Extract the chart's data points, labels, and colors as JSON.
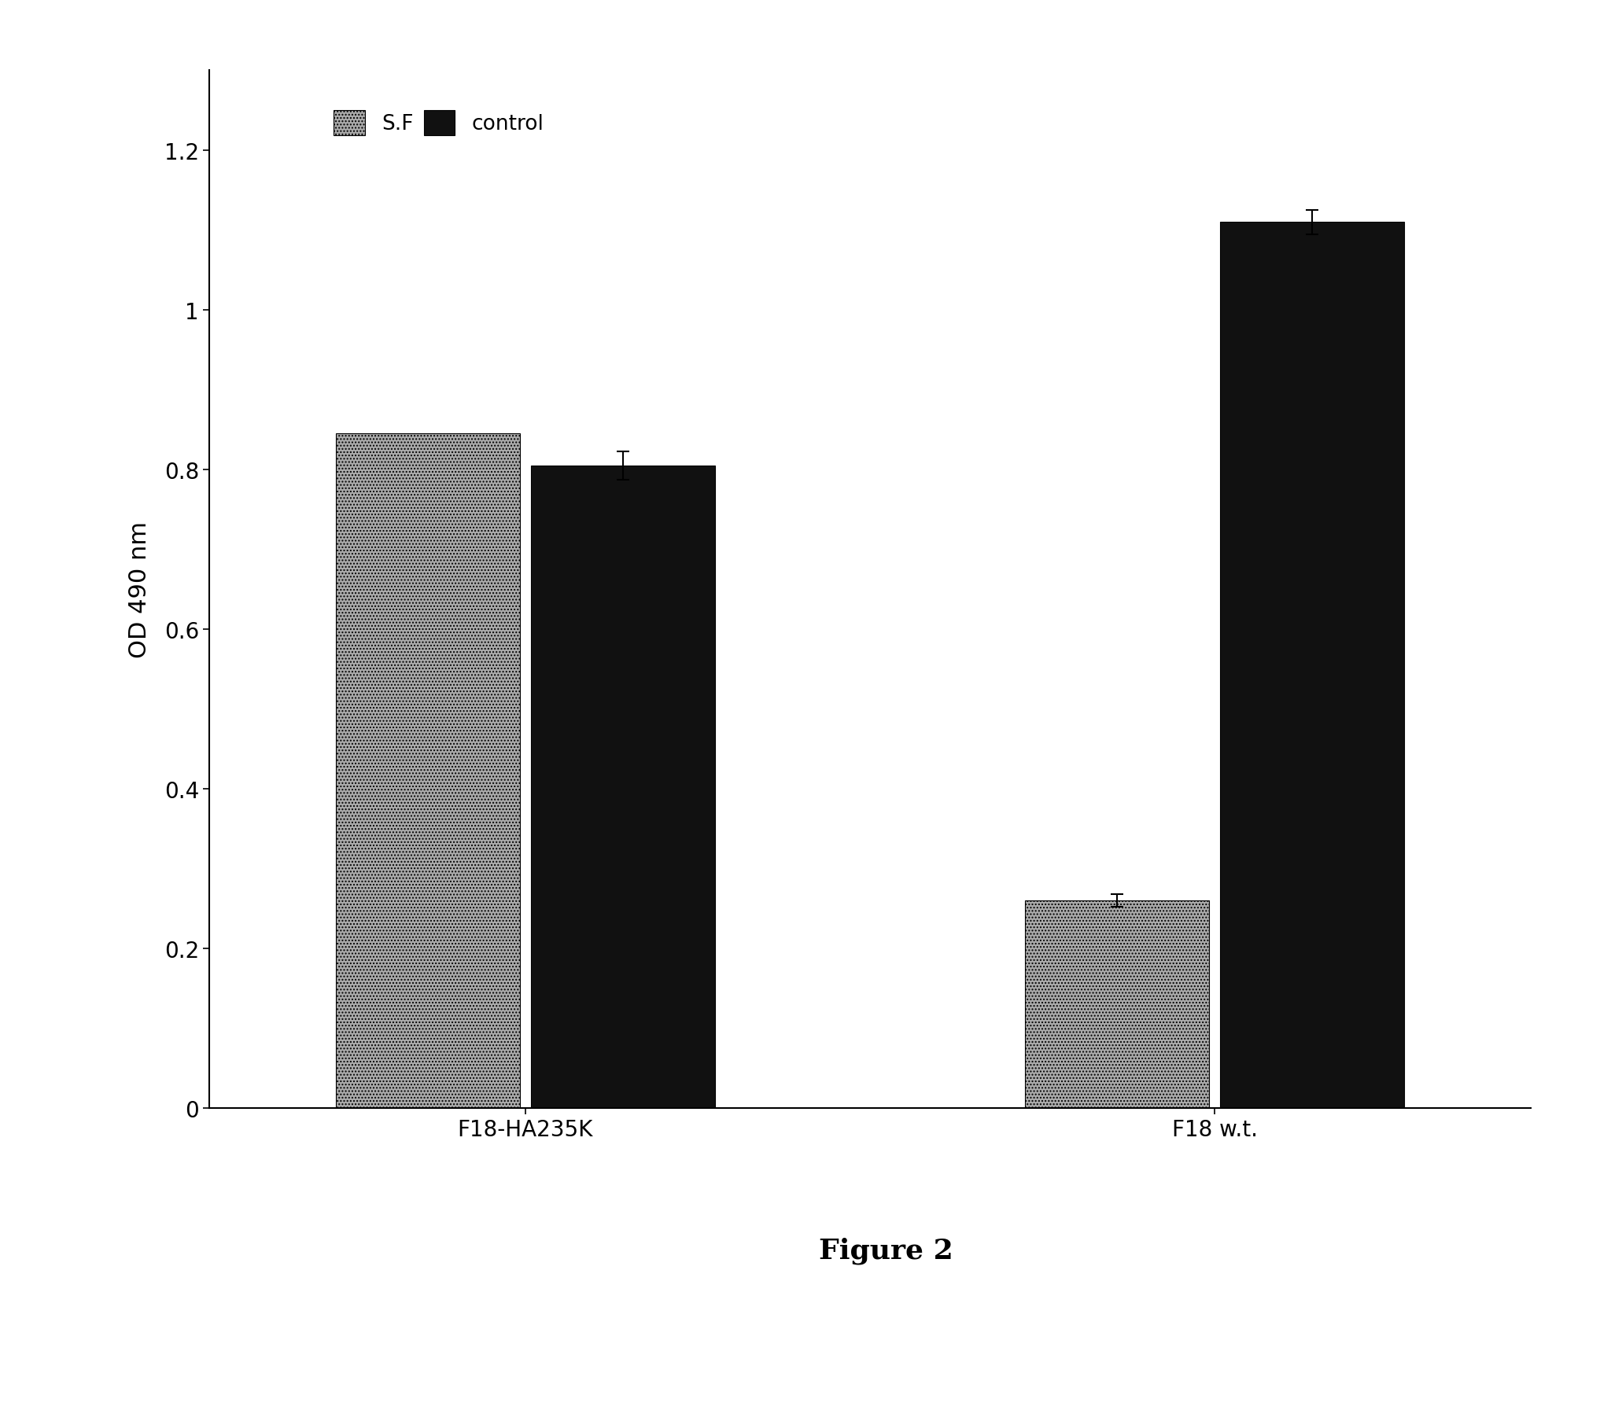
{
  "categories": [
    "F18-HA235K",
    "F18 w.t."
  ],
  "sf_values": [
    0.845,
    0.26
  ],
  "control_values": [
    0.805,
    1.11
  ],
  "sf_errors": [
    0.0,
    0.008
  ],
  "control_errors": [
    0.018,
    0.015
  ],
  "sf_color": "#aaaaaa",
  "control_color": "#111111",
  "sf_hatch": "....",
  "ylabel": "OD 490 nm",
  "ylim": [
    0,
    1.3
  ],
  "yticks": [
    0,
    0.2,
    0.4,
    0.6,
    0.8,
    1.0,
    1.2
  ],
  "ytick_labels": [
    "0",
    "0.2",
    "0.4",
    "0.6",
    "0.8",
    "1",
    "1.2"
  ],
  "legend_sf": "S.F",
  "legend_control": "control",
  "figure_label": "Figure 2",
  "bar_width": 0.32,
  "background_color": "#ffffff",
  "axis_fontsize": 22,
  "tick_fontsize": 20,
  "legend_fontsize": 19,
  "figure_label_fontsize": 26
}
